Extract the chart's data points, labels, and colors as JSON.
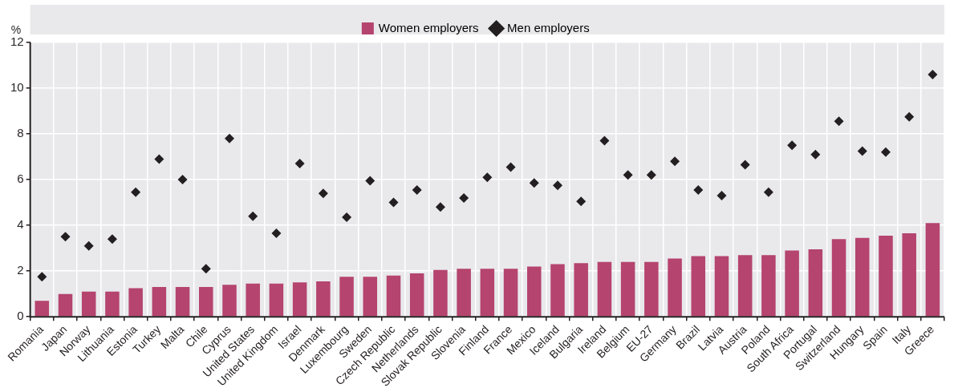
{
  "chart_data": {
    "type": "bar",
    "ylabel": "%",
    "categories": [
      "Romania",
      "Japan",
      "Norway",
      "Lithuania",
      "Estonia",
      "Turkey",
      "Malta",
      "Chile",
      "Cyprus",
      "United States",
      "United Kingdom",
      "Israel",
      "Denmark",
      "Luxembourg",
      "Sweden",
      "Czech Republic",
      "Netherlands",
      "Slovak Republic",
      "Slovenia",
      "Finland",
      "France",
      "Mexico",
      "Iceland",
      "Bulgaria",
      "Ireland",
      "Belgium",
      "EU-27",
      "Germany",
      "Brazil",
      "Latvia",
      "Austria",
      "Poland",
      "South Africa",
      "Portugal",
      "Switzerland",
      "Hungary",
      "Spain",
      "Italy",
      "Greece"
    ],
    "series": [
      {
        "name": "Women employers",
        "color": "#b5446e",
        "values": [
          0.7,
          1.0,
          1.1,
          1.1,
          1.25,
          1.3,
          1.3,
          1.3,
          1.4,
          1.45,
          1.45,
          1.5,
          1.55,
          1.75,
          1.75,
          1.8,
          1.9,
          2.05,
          2.1,
          2.1,
          2.1,
          2.2,
          2.3,
          2.35,
          2.4,
          2.4,
          2.4,
          2.55,
          2.65,
          2.65,
          2.7,
          2.7,
          2.9,
          2.95,
          3.4,
          3.45,
          3.55,
          3.65,
          4.1
        ]
      },
      {
        "name": "Men employers",
        "type": "scatter",
        "color": "#231f20",
        "marker": "diamond",
        "values": [
          1.75,
          3.5,
          3.1,
          3.4,
          5.45,
          6.9,
          6.0,
          2.1,
          7.8,
          4.4,
          3.65,
          6.7,
          5.4,
          4.35,
          5.95,
          5.0,
          5.55,
          4.8,
          5.2,
          6.1,
          6.55,
          5.85,
          5.75,
          5.05,
          7.7,
          6.2,
          6.2,
          6.8,
          5.55,
          5.3,
          6.65,
          5.45,
          7.5,
          7.1,
          8.55,
          7.25,
          7.2,
          8.75,
          10.6
        ]
      }
    ],
    "ylim": [
      0,
      12
    ],
    "yticks": [
      0,
      2,
      4,
      6,
      8,
      10,
      12
    ],
    "grid": true,
    "legend": "top"
  }
}
